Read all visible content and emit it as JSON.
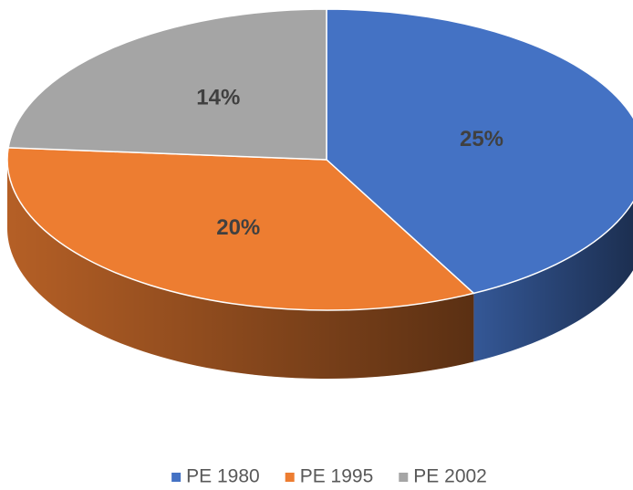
{
  "chart_data": {
    "type": "pie",
    "three_d": true,
    "categories": [
      "PE 1980",
      "PE 1995",
      "PE 2002"
    ],
    "values": [
      25,
      20,
      14
    ],
    "value_labels": [
      "25%",
      "20%",
      "14%"
    ],
    "colors": [
      "#4472c4",
      "#ed7d31",
      "#a5a5a5"
    ],
    "legend": "bottom"
  }
}
